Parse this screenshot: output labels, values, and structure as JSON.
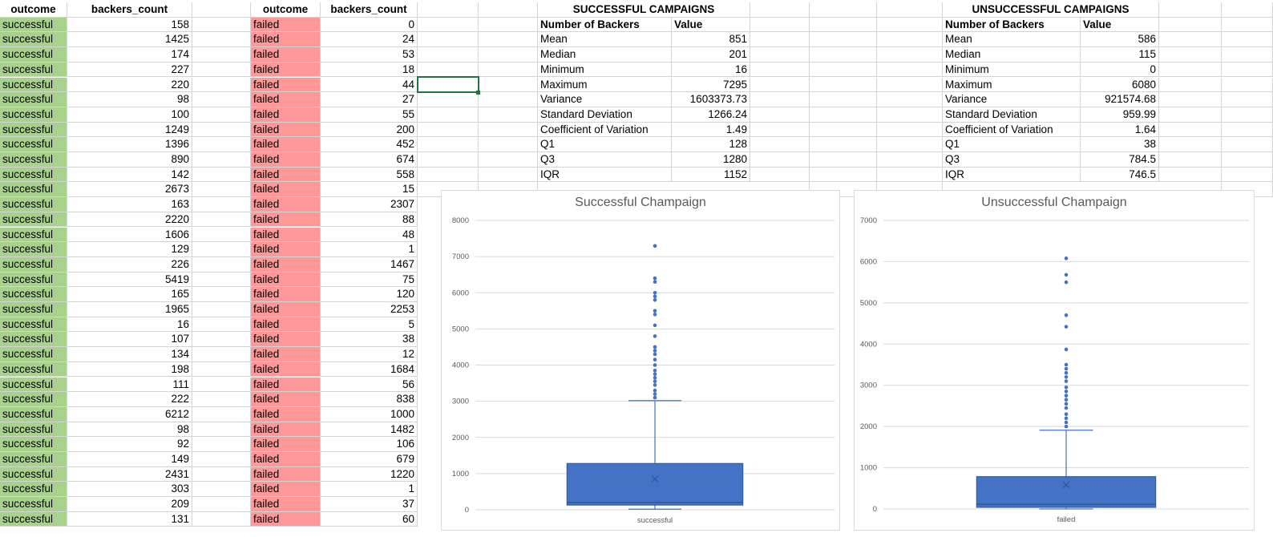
{
  "table_left": {
    "header": [
      "outcome",
      "backers_count"
    ],
    "rows": [
      [
        "successful",
        "158"
      ],
      [
        "successful",
        "1425"
      ],
      [
        "successful",
        "174"
      ],
      [
        "successful",
        "227"
      ],
      [
        "successful",
        "220"
      ],
      [
        "successful",
        "98"
      ],
      [
        "successful",
        "100"
      ],
      [
        "successful",
        "1249"
      ],
      [
        "successful",
        "1396"
      ],
      [
        "successful",
        "890"
      ],
      [
        "successful",
        "142"
      ],
      [
        "successful",
        "2673"
      ],
      [
        "successful",
        "163"
      ],
      [
        "successful",
        "2220"
      ],
      [
        "successful",
        "1606"
      ],
      [
        "successful",
        "129"
      ],
      [
        "successful",
        "226"
      ],
      [
        "successful",
        "5419"
      ],
      [
        "successful",
        "165"
      ],
      [
        "successful",
        "1965"
      ],
      [
        "successful",
        "16"
      ],
      [
        "successful",
        "107"
      ],
      [
        "successful",
        "134"
      ],
      [
        "successful",
        "198"
      ],
      [
        "successful",
        "111"
      ],
      [
        "successful",
        "222"
      ],
      [
        "successful",
        "6212"
      ],
      [
        "successful",
        "98"
      ],
      [
        "successful",
        "92"
      ],
      [
        "successful",
        "149"
      ],
      [
        "successful",
        "2431"
      ],
      [
        "successful",
        "303"
      ],
      [
        "successful",
        "209"
      ],
      [
        "successful",
        "131"
      ]
    ]
  },
  "table_right": {
    "header": [
      "outcome",
      "backers_count"
    ],
    "rows": [
      [
        "failed",
        "0"
      ],
      [
        "failed",
        "24"
      ],
      [
        "failed",
        "53"
      ],
      [
        "failed",
        "18"
      ],
      [
        "failed",
        "44"
      ],
      [
        "failed",
        "27"
      ],
      [
        "failed",
        "55"
      ],
      [
        "failed",
        "200"
      ],
      [
        "failed",
        "452"
      ],
      [
        "failed",
        "674"
      ],
      [
        "failed",
        "558"
      ],
      [
        "failed",
        "15"
      ],
      [
        "failed",
        "2307"
      ],
      [
        "failed",
        "88"
      ],
      [
        "failed",
        "48"
      ],
      [
        "failed",
        "1"
      ],
      [
        "failed",
        "1467"
      ],
      [
        "failed",
        "75"
      ],
      [
        "failed",
        "120"
      ],
      [
        "failed",
        "2253"
      ],
      [
        "failed",
        "5"
      ],
      [
        "failed",
        "38"
      ],
      [
        "failed",
        "12"
      ],
      [
        "failed",
        "1684"
      ],
      [
        "failed",
        "56"
      ],
      [
        "failed",
        "838"
      ],
      [
        "failed",
        "1000"
      ],
      [
        "failed",
        "1482"
      ],
      [
        "failed",
        "106"
      ],
      [
        "failed",
        "679"
      ],
      [
        "failed",
        "1220"
      ],
      [
        "failed",
        "1"
      ],
      [
        "failed",
        "37"
      ],
      [
        "failed",
        "60"
      ]
    ]
  },
  "stats_success": {
    "title": "SUCCESSFUL CAMPAIGNS",
    "header": [
      "Number of Backers",
      "Value"
    ],
    "rows": [
      [
        "Mean",
        "851"
      ],
      [
        "Median",
        "201"
      ],
      [
        "Minimum",
        "16"
      ],
      [
        "Maximum",
        "7295"
      ],
      [
        "Variance",
        "1603373.73"
      ],
      [
        "Standard Deviation",
        "1266.24"
      ],
      [
        "Coefficient of Variation",
        "1.49"
      ],
      [
        "Q1",
        "128"
      ],
      [
        "Q3",
        "1280"
      ],
      [
        "IQR",
        "1152"
      ]
    ]
  },
  "stats_fail": {
    "title": "UNSUCCESSFUL CAMPAIGNS",
    "header": [
      "Number of Backers",
      "Value"
    ],
    "rows": [
      [
        "Mean",
        "586"
      ],
      [
        "Median",
        "115"
      ],
      [
        "Minimum",
        "0"
      ],
      [
        "Maximum",
        "6080"
      ],
      [
        "Variance",
        "921574.68"
      ],
      [
        "Standard Deviation",
        "959.99"
      ],
      [
        "Coefficient of Variation",
        "1.64"
      ],
      [
        "Q1",
        "38"
      ],
      [
        "Q3",
        "784.5"
      ],
      [
        "IQR",
        "746.5"
      ]
    ]
  },
  "chart_data": [
    {
      "type": "box",
      "title": "Successful Champaign",
      "category": "successful",
      "ylim": [
        0,
        8000
      ],
      "yticks": [
        0,
        1000,
        2000,
        3000,
        4000,
        5000,
        6000,
        7000,
        8000
      ],
      "min": 16,
      "q1": 128,
      "median": 201,
      "q3": 1280,
      "mean": 851,
      "whisker_high": 3016,
      "outliers": [
        3100,
        3200,
        3300,
        3450,
        3550,
        3650,
        3750,
        3850,
        4000,
        4150,
        4300,
        4400,
        4500,
        4800,
        5100,
        5400,
        5500,
        5800,
        5900,
        6000,
        6300,
        6400,
        7295
      ],
      "color": "#4472c4"
    },
    {
      "type": "box",
      "title": "Unsuccessful Champaign",
      "category": "failed",
      "ylim": [
        0,
        7000
      ],
      "yticks": [
        0,
        1000,
        2000,
        3000,
        4000,
        5000,
        6000,
        7000
      ],
      "min": 0,
      "q1": 38,
      "median": 115,
      "q3": 784.5,
      "mean": 586,
      "whisker_high": 1910,
      "outliers": [
        2000,
        2100,
        2200,
        2300,
        2450,
        2550,
        2650,
        2750,
        2850,
        2950,
        3100,
        3200,
        3300,
        3400,
        3500,
        3870,
        4420,
        4700,
        5500,
        5680,
        6080
      ],
      "color": "#4472c4"
    }
  ]
}
